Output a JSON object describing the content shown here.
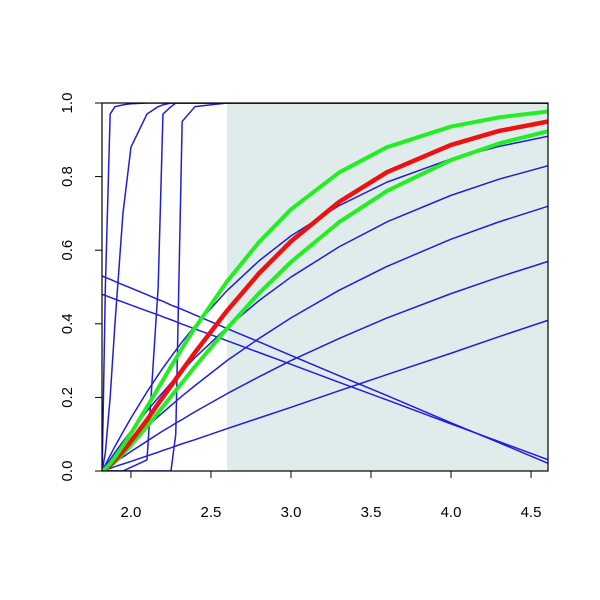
{
  "chart_data": {
    "type": "line",
    "x": [
      1.82,
      1.84,
      1.87,
      1.9,
      1.95,
      2.0,
      2.1,
      2.17,
      2.2,
      2.25,
      2.28,
      2.32,
      2.4,
      2.6,
      2.8,
      3.0,
      3.3,
      3.6,
      4.0,
      4.3,
      4.61
    ],
    "xlim": [
      1.819,
      4.606
    ],
    "ylim": [
      0,
      1
    ],
    "xticks": [
      {
        "value": 2.0,
        "label": "2.0"
      },
      2.5,
      {
        "value": 3.0,
        "label": "3.0"
      },
      3.5,
      {
        "value": 4.0,
        "label": "4.0"
      },
      4.5
    ],
    "yticks": [
      {
        "value": 0,
        "label": "0.0"
      },
      {
        "value": 0.2,
        "label": "0.2"
      },
      {
        "value": 0.4,
        "label": "0.4"
      },
      {
        "value": 0.6,
        "label": "0.6"
      },
      {
        "value": 0.8,
        "label": "0.8"
      },
      {
        "value": 1,
        "label": "1.0"
      }
    ],
    "shaded_xrange": [
      2.6,
      4.606
    ],
    "shaded_color": "#e0ecec",
    "series": [
      {
        "color": "#1f1fd6",
        "width": 1.5,
        "values": [
          0,
          0.5,
          0.97,
          0.99,
          0.995,
          0.998,
          1,
          1,
          1,
          1,
          1,
          1,
          1,
          1,
          1,
          1,
          1,
          1,
          1,
          1,
          1
        ]
      },
      {
        "color": "#1f1fd6",
        "width": 1.5,
        "values": [
          0,
          0.05,
          0.2,
          0.4,
          0.7,
          0.88,
          0.97,
          0.99,
          0.995,
          1,
          1,
          1,
          1,
          1,
          1,
          1,
          1,
          1,
          1,
          1,
          1
        ]
      },
      {
        "color": "#1f1fd6",
        "width": 1.5,
        "values": [
          0,
          0,
          0,
          0,
          0,
          0.01,
          0.03,
          0.5,
          0.97,
          0.99,
          1,
          1,
          1,
          1,
          1,
          1,
          1,
          1,
          1,
          1,
          1
        ]
      },
      {
        "color": "#1f1fd6",
        "width": 1.5,
        "values": [
          0,
          0,
          0,
          0,
          0,
          0,
          0,
          0,
          0,
          0,
          0.1,
          0.95,
          0.99,
          1,
          1,
          1,
          1,
          1,
          1,
          1,
          1
        ]
      },
      {
        "color": "#1f1fd6",
        "width": 1.5,
        "values": [
          0,
          0.017,
          0.042,
          0.067,
          0.106,
          0.144,
          0.215,
          0.261,
          0.28,
          0.31,
          0.328,
          0.351,
          0.394,
          0.49,
          0.571,
          0.639,
          0.721,
          0.785,
          0.848,
          0.882,
          0.91
        ]
      },
      {
        "color": "#1f1fd6",
        "width": 1.5,
        "values": [
          0,
          0.013,
          0.031,
          0.05,
          0.08,
          0.108,
          0.163,
          0.199,
          0.214,
          0.239,
          0.253,
          0.272,
          0.308,
          0.39,
          0.463,
          0.527,
          0.609,
          0.677,
          0.749,
          0.793,
          0.83
        ]
      },
      {
        "color": "#1f1fd6",
        "width": 1.5,
        "values": [
          0,
          0.009,
          0.023,
          0.035,
          0.057,
          0.079,
          0.12,
          0.148,
          0.159,
          0.178,
          0.189,
          0.204,
          0.232,
          0.3,
          0.36,
          0.416,
          0.491,
          0.556,
          0.63,
          0.677,
          0.72
        ]
      },
      {
        "color": "#1f1fd6",
        "width": 1.5,
        "values": [
          0,
          0.006,
          0.015,
          0.024,
          0.038,
          0.053,
          0.081,
          0.101,
          0.109,
          0.122,
          0.13,
          0.14,
          0.161,
          0.21,
          0.256,
          0.3,
          0.36,
          0.416,
          0.482,
          0.527,
          0.57
        ]
      },
      {
        "color": "#1f1fd6",
        "width": 1.5,
        "values": [
          0,
          0.003,
          0.007,
          0.012,
          0.019,
          0.026,
          0.041,
          0.051,
          0.056,
          0.063,
          0.068,
          0.074,
          0.085,
          0.115,
          0.144,
          0.173,
          0.218,
          0.262,
          0.32,
          0.365,
          0.41
        ]
      },
      {
        "color": "#1f1fd6",
        "width": 1.5,
        "values": [
          0.53,
          0.526,
          0.521,
          0.515,
          0.506,
          0.497,
          0.479,
          0.466,
          0.461,
          0.451,
          0.446,
          0.439,
          0.424,
          0.387,
          0.351,
          0.314,
          0.259,
          0.205,
          0.131,
          0.077,
          0.02
        ]
      },
      {
        "color": "#1f1fd6",
        "width": 1.5,
        "values": [
          0.48,
          0.477,
          0.472,
          0.467,
          0.459,
          0.451,
          0.435,
          0.424,
          0.419,
          0.411,
          0.406,
          0.399,
          0.386,
          0.354,
          0.322,
          0.29,
          0.241,
          0.193,
          0.128,
          0.08,
          0.03
        ]
      },
      {
        "color": "#22ee22",
        "width": 4,
        "values": [
          0,
          0.004,
          0.014,
          0.025,
          0.047,
          0.07,
          0.121,
          0.159,
          0.175,
          0.202,
          0.219,
          0.24,
          0.284,
          0.387,
          0.483,
          0.568,
          0.676,
          0.761,
          0.845,
          0.89,
          0.924
        ]
      },
      {
        "color": "#ee1111",
        "width": 4.5,
        "values": [
          0,
          0.005,
          0.016,
          0.03,
          0.054,
          0.081,
          0.139,
          0.183,
          0.201,
          0.231,
          0.25,
          0.274,
          0.322,
          0.435,
          0.537,
          0.624,
          0.731,
          0.812,
          0.886,
          0.924,
          0.95
        ]
      },
      {
        "color": "#22ee22",
        "width": 4,
        "values": [
          0,
          0.006,
          0.02,
          0.037,
          0.069,
          0.102,
          0.174,
          0.225,
          0.247,
          0.284,
          0.305,
          0.334,
          0.389,
          0.515,
          0.622,
          0.711,
          0.811,
          0.88,
          0.936,
          0.961,
          0.977
        ]
      }
    ]
  }
}
